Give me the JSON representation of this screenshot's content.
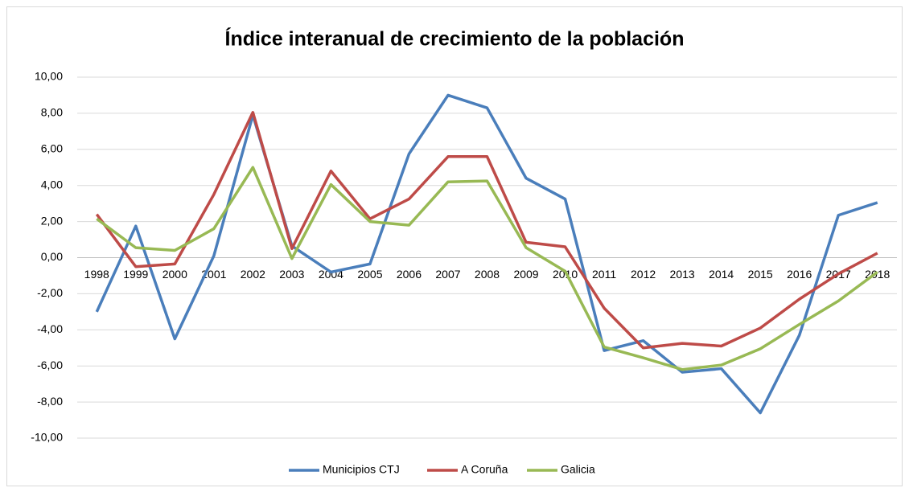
{
  "chart_data": {
    "type": "line",
    "title": "Índice interanual de crecimiento de la población",
    "categories": [
      "1998",
      "1999",
      "2000",
      "2001",
      "2002",
      "2003",
      "2004",
      "2005",
      "2006",
      "2007",
      "2008",
      "2009",
      "2010",
      "2011",
      "2012",
      "2013",
      "2014",
      "2015",
      "2016",
      "2017",
      "2018"
    ],
    "series": [
      {
        "name": "Municipios CTJ",
        "color": "#4a7ebb",
        "values": [
          -3.0,
          1.75,
          -4.5,
          0.1,
          7.9,
          0.65,
          -0.8,
          -0.35,
          5.75,
          9.0,
          8.3,
          4.4,
          3.25,
          -5.15,
          -4.6,
          -6.35,
          -6.15,
          -8.6,
          -4.3,
          2.35,
          3.05
        ]
      },
      {
        "name": "A Coruña",
        "color": "#be4b48",
        "values": [
          2.4,
          -0.5,
          -0.35,
          3.5,
          8.05,
          0.5,
          4.8,
          2.15,
          3.25,
          5.6,
          5.6,
          0.85,
          0.6,
          -2.8,
          -5.0,
          -4.75,
          -4.9,
          -3.9,
          -2.3,
          -0.9,
          0.25
        ]
      },
      {
        "name": "Galicia",
        "color": "#98b954",
        "values": [
          2.15,
          0.55,
          0.4,
          1.6,
          5.0,
          -0.05,
          4.05,
          2.0,
          1.8,
          4.2,
          4.25,
          0.55,
          -0.75,
          -4.95,
          -5.55,
          -6.2,
          -5.95,
          -5.05,
          -3.7,
          -2.4,
          -0.8
        ]
      }
    ],
    "ylim": [
      -10,
      10
    ],
    "yticks": [
      {
        "value": -10,
        "label": "-10,00"
      },
      {
        "value": -8,
        "label": "-8,00"
      },
      {
        "value": -6,
        "label": "-6,00"
      },
      {
        "value": -4,
        "label": "-4,00"
      },
      {
        "value": -2,
        "label": "-2,00"
      },
      {
        "value": 0,
        "label": "0,00"
      },
      {
        "value": 2,
        "label": "2,00"
      },
      {
        "value": 4,
        "label": "4,00"
      },
      {
        "value": 6,
        "label": "6,00"
      },
      {
        "value": 8,
        "label": "8,00"
      },
      {
        "value": 10,
        "label": "10,00"
      }
    ],
    "grid": true,
    "legend": "bottom"
  }
}
